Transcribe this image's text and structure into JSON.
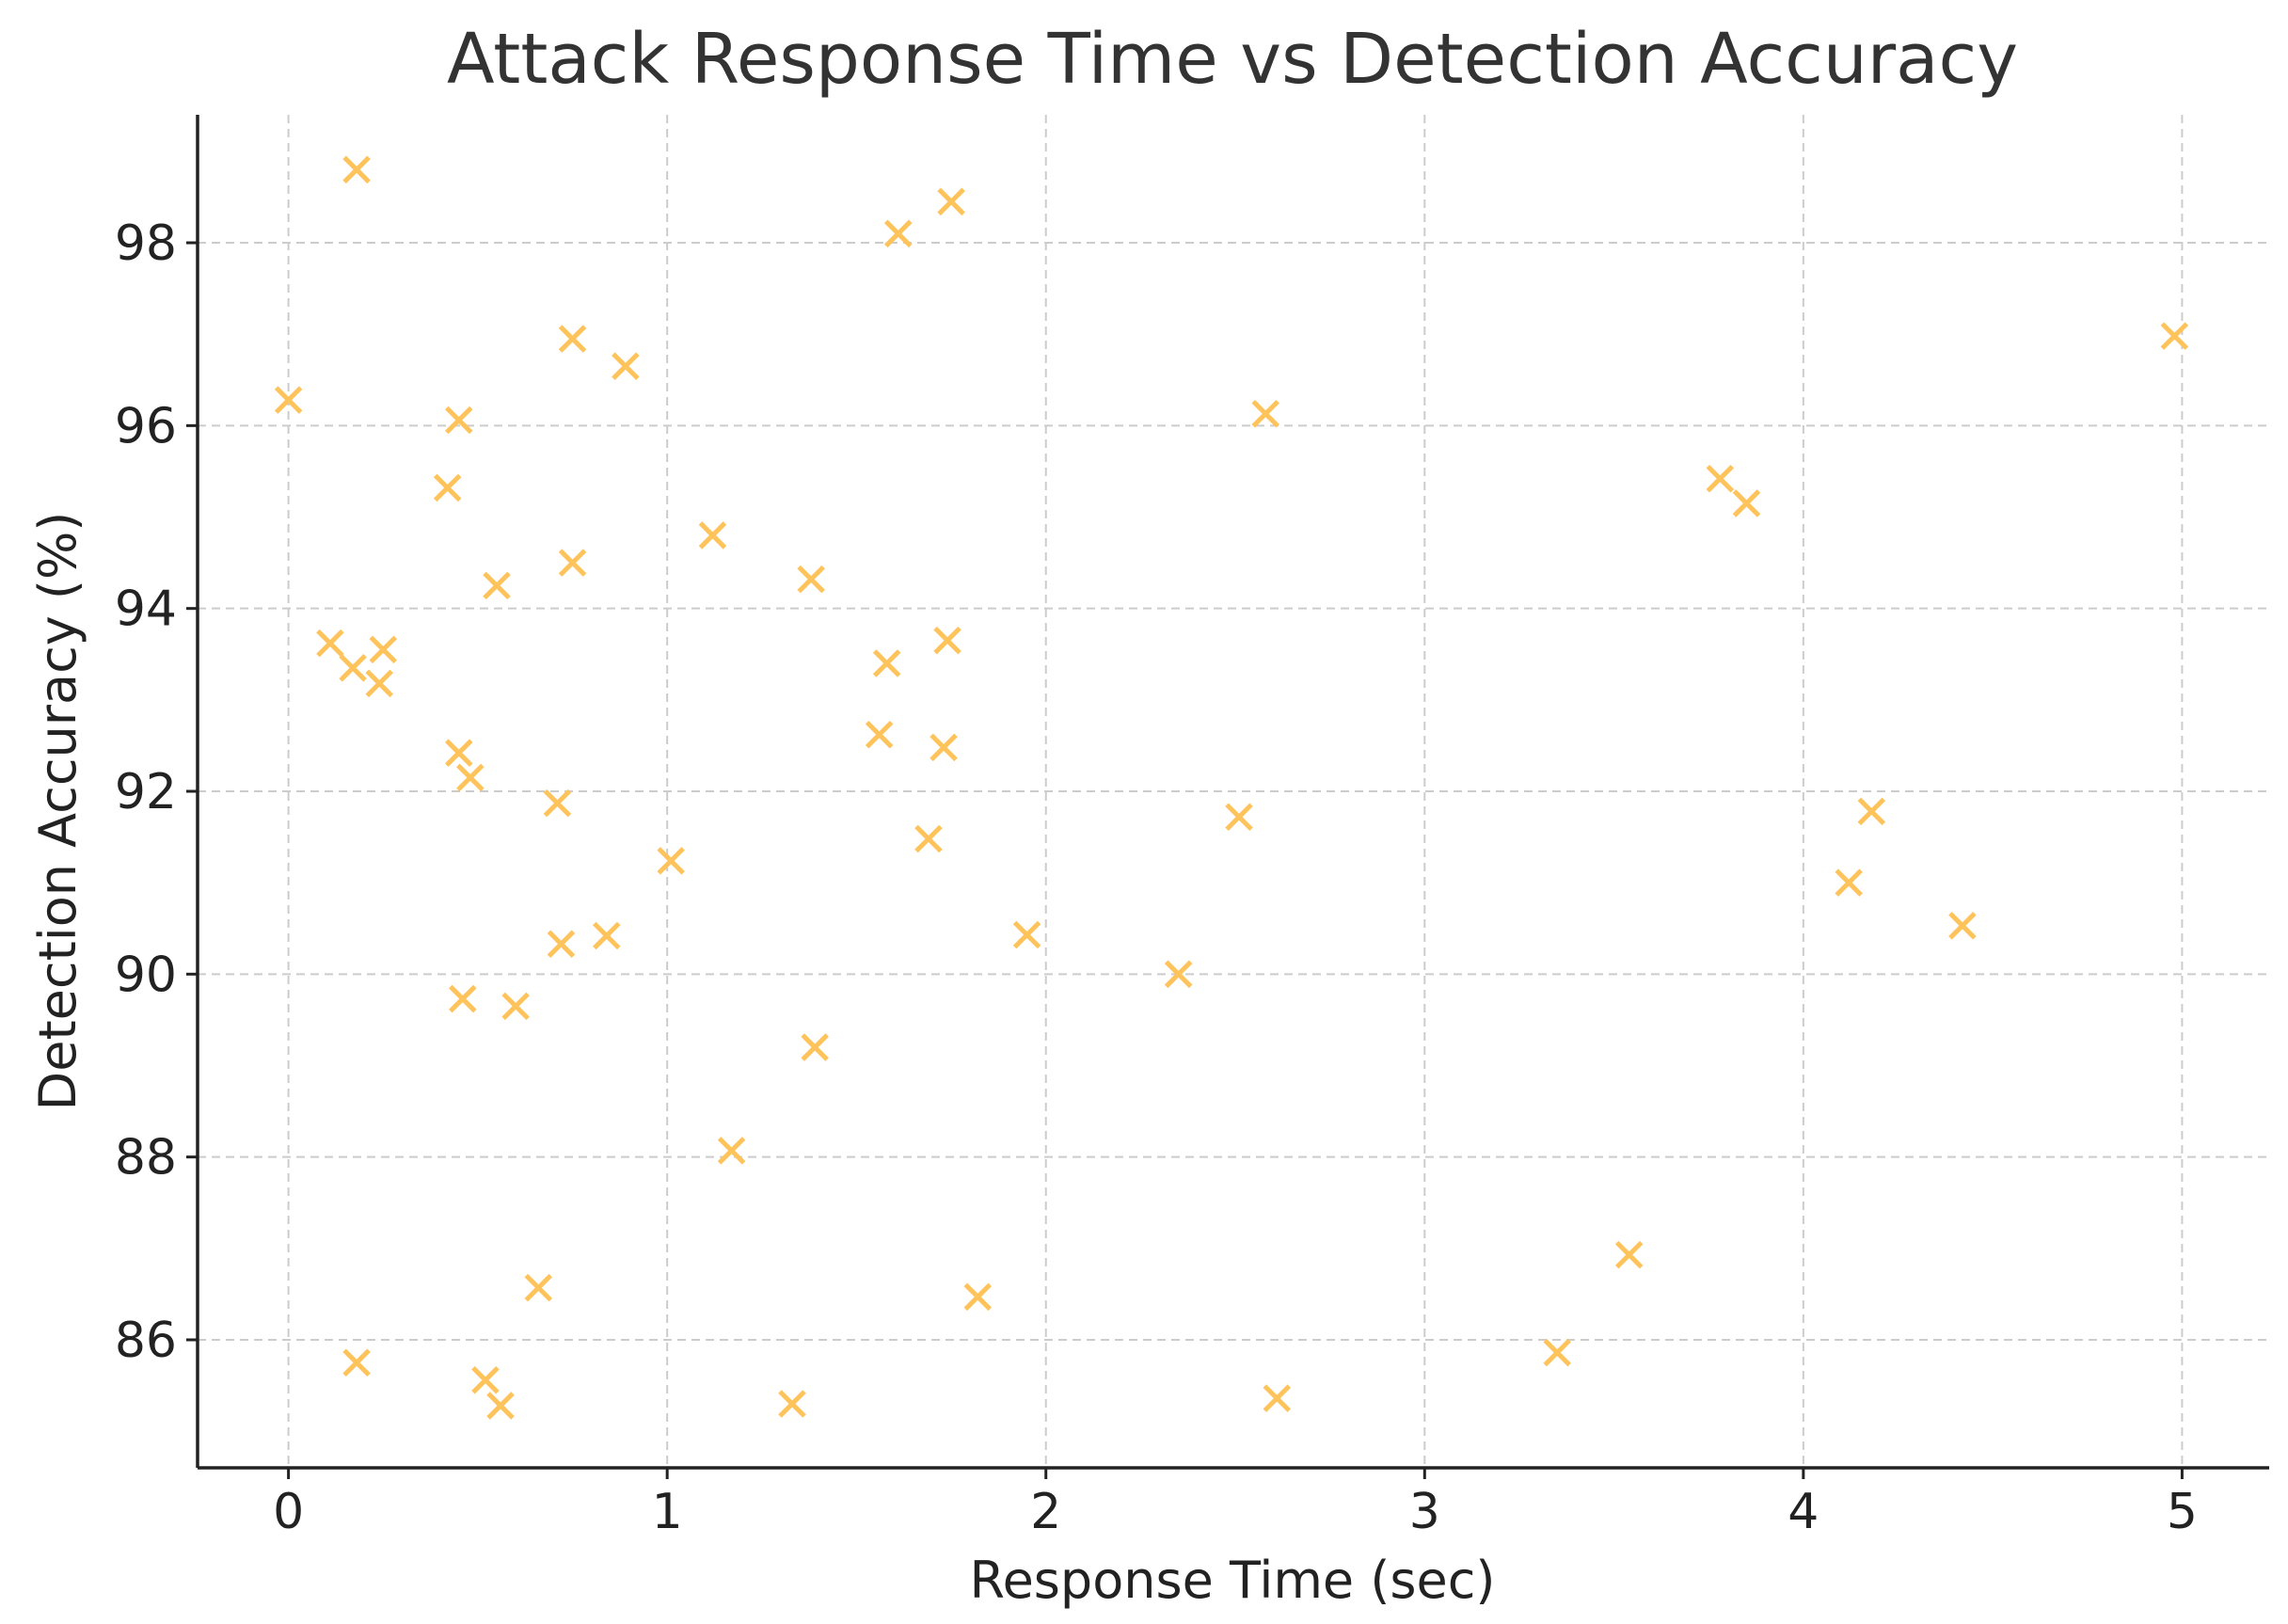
{
  "chart_data": {
    "type": "scatter",
    "title": "Attack Response Time vs Detection Accuracy",
    "xlabel": "Response Time (sec)",
    "ylabel": "Detection Accuracy (%)",
    "xlim": [
      -0.24,
      5.23
    ],
    "ylim": [
      84.6,
      99.4
    ],
    "xticks": [
      0,
      1,
      2,
      3,
      4,
      5
    ],
    "yticks": [
      86,
      88,
      90,
      92,
      94,
      96,
      98
    ],
    "grid": true,
    "marker": "x",
    "color": "#FFC35C",
    "series": [
      {
        "points": [
          [
            0.18,
            98.8
          ],
          [
            1.61,
            98.1
          ],
          [
            1.75,
            98.45
          ],
          [
            0.75,
            96.95
          ],
          [
            0.89,
            96.65
          ],
          [
            4.98,
            96.98
          ],
          [
            0.0,
            96.28
          ],
          [
            0.45,
            96.06
          ],
          [
            2.58,
            96.13
          ],
          [
            0.42,
            95.32
          ],
          [
            3.78,
            95.42
          ],
          [
            3.85,
            95.15
          ],
          [
            1.12,
            94.8
          ],
          [
            0.75,
            94.5
          ],
          [
            0.55,
            94.25
          ],
          [
            1.38,
            94.32
          ],
          [
            0.11,
            93.62
          ],
          [
            0.25,
            93.55
          ],
          [
            0.17,
            93.35
          ],
          [
            0.24,
            93.18
          ],
          [
            1.58,
            93.4
          ],
          [
            1.74,
            93.65
          ],
          [
            1.56,
            92.62
          ],
          [
            1.73,
            92.48
          ],
          [
            0.45,
            92.42
          ],
          [
            0.48,
            92.15
          ],
          [
            0.71,
            91.87
          ],
          [
            2.51,
            91.72
          ],
          [
            4.18,
            91.78
          ],
          [
            1.69,
            91.48
          ],
          [
            1.01,
            91.24
          ],
          [
            4.12,
            91.0
          ],
          [
            4.42,
            90.53
          ],
          [
            1.95,
            90.43
          ],
          [
            0.84,
            90.42
          ],
          [
            0.72,
            90.33
          ],
          [
            2.35,
            90.0
          ],
          [
            0.46,
            89.73
          ],
          [
            0.6,
            89.65
          ],
          [
            1.39,
            89.2
          ],
          [
            1.17,
            88.07
          ],
          [
            3.54,
            86.93
          ],
          [
            0.66,
            86.57
          ],
          [
            1.82,
            86.47
          ],
          [
            3.35,
            85.86
          ],
          [
            0.18,
            85.75
          ],
          [
            0.52,
            85.56
          ],
          [
            0.56,
            85.28
          ],
          [
            1.33,
            85.3
          ],
          [
            2.61,
            85.36
          ]
        ]
      }
    ]
  }
}
